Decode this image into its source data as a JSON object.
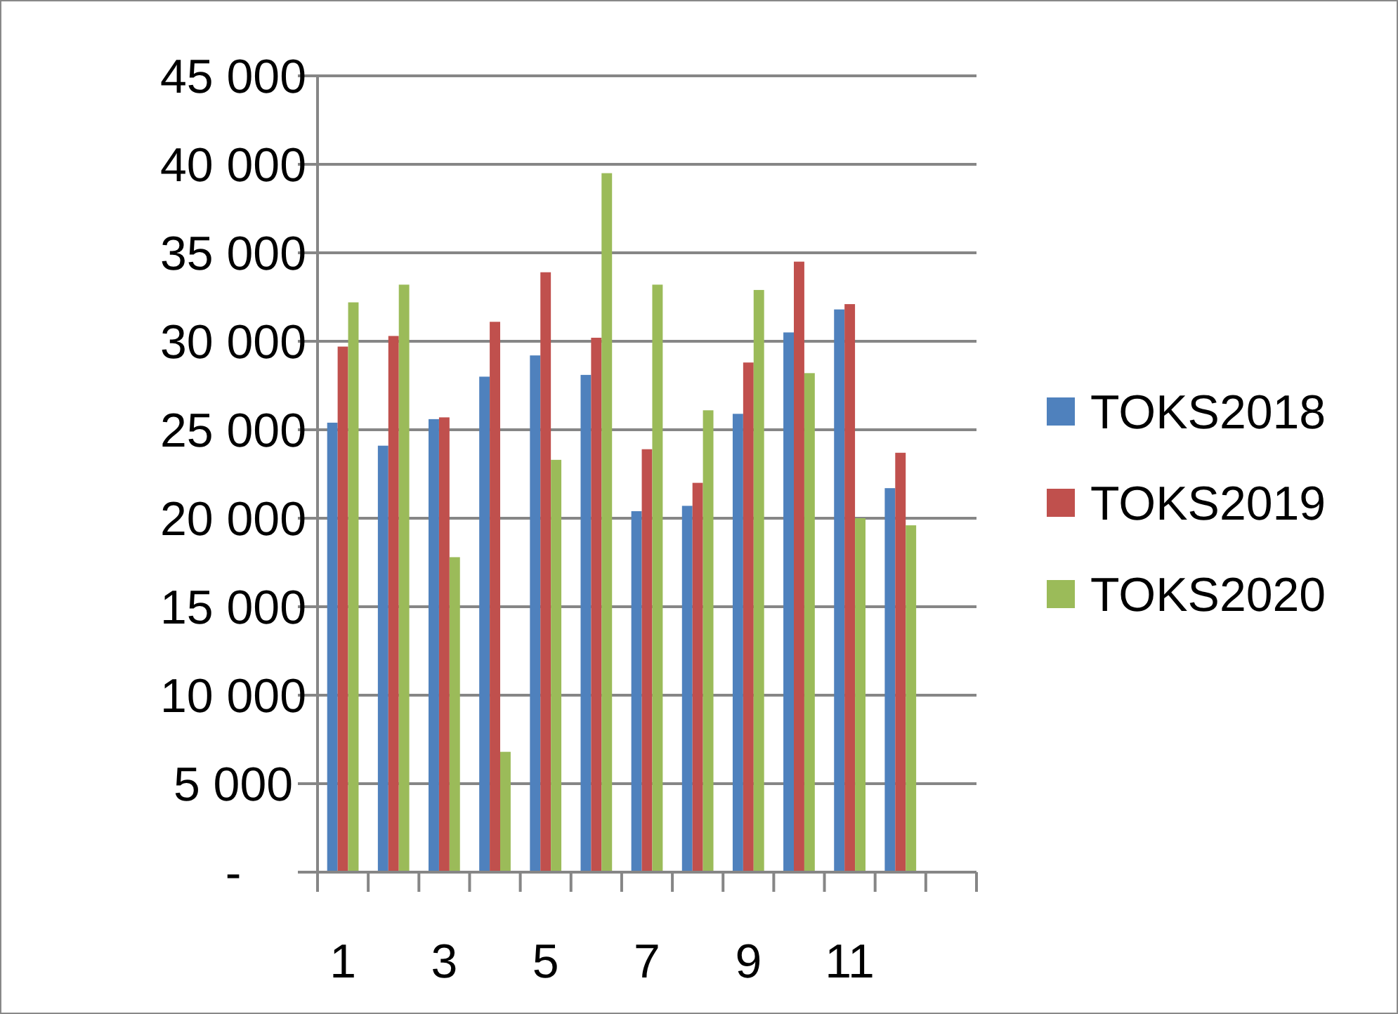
{
  "chart_data": {
    "type": "bar",
    "categories": [
      "1",
      null,
      "3",
      null,
      "5",
      null,
      "7",
      null,
      "9",
      null,
      "11",
      null,
      null
    ],
    "series": [
      {
        "name": "TOKS2018",
        "color": "#4f81bd",
        "values": [
          25400,
          24100,
          25600,
          28000,
          29200,
          28100,
          20400,
          20700,
          25900,
          30500,
          31800,
          21700,
          null
        ]
      },
      {
        "name": "TOKS2019",
        "color": "#c0504d",
        "values": [
          29700,
          30300,
          25700,
          31100,
          33900,
          30200,
          23900,
          22000,
          28800,
          34500,
          32100,
          23700,
          null
        ]
      },
      {
        "name": "TOKS2020",
        "color": "#9bbb59",
        "values": [
          32200,
          33200,
          17800,
          6800,
          23300,
          39500,
          33200,
          26100,
          32900,
          28200,
          20000,
          19600,
          null
        ]
      }
    ],
    "ylim": [
      0,
      45000
    ],
    "yticks": [
      {
        "value": 0,
        "label": "-"
      },
      {
        "value": 5000,
        "label": "5 000"
      },
      {
        "value": 10000,
        "label": "10 000"
      },
      {
        "value": 15000,
        "label": "15 000"
      },
      {
        "value": 20000,
        "label": "20 000"
      },
      {
        "value": 25000,
        "label": "25 000"
      },
      {
        "value": 30000,
        "label": "30 000"
      },
      {
        "value": 35000,
        "label": "35 000"
      },
      {
        "value": 40000,
        "label": "40 000"
      },
      {
        "value": 45000,
        "label": "45 000"
      }
    ],
    "grid": "y",
    "legend": "right"
  }
}
